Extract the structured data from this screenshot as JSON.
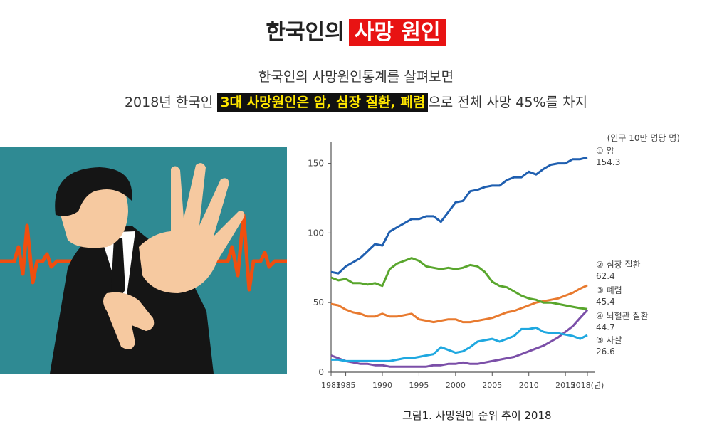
{
  "header": {
    "title_prefix": "한국인의",
    "title_highlight": "사망 원인",
    "line1": "한국인의 사망원인통계를 살펴보면",
    "line2_prefix": "2018년 한국인",
    "line2_highlight": "3대 사망원인은 암, 심장 질환, 폐렴",
    "line2_suffix": "으로 전체 사망 45%를 차지"
  },
  "caption": "그림1. 사망원인 순위 추이 2018",
  "illustration": {
    "icon": "heart-attack-person-icon",
    "bg_color": "#2f8a93",
    "pulse_color": "#f04e0f"
  },
  "chart_data": {
    "type": "line",
    "unit_label": "(인구 10만 명당 명)",
    "x_ticks": [
      "1983",
      "1985",
      "1990",
      "1995",
      "2000",
      "2005",
      "2010",
      "2015",
      "2018(년)"
    ],
    "y_ticks": [
      "0",
      "50",
      "100",
      "150"
    ],
    "xlim": [
      1983,
      2018
    ],
    "ylim": [
      0,
      160
    ],
    "grid": false,
    "series": [
      {
        "name": "① 암",
        "end_value": "154.3",
        "color": "#1f5fb0",
        "x": [
          1983,
          1984,
          1985,
          1986,
          1987,
          1988,
          1989,
          1990,
          1991,
          1992,
          1993,
          1994,
          1995,
          1996,
          1997,
          1998,
          1999,
          2000,
          2001,
          2002,
          2003,
          2004,
          2005,
          2006,
          2007,
          2008,
          2009,
          2010,
          2011,
          2012,
          2013,
          2014,
          2015,
          2016,
          2017,
          2018
        ],
        "y": [
          72,
          71,
          76,
          79,
          82,
          87,
          92,
          91,
          101,
          104,
          107,
          110,
          110,
          112,
          112,
          108,
          115,
          122,
          123,
          130,
          131,
          133,
          134,
          134,
          138,
          140,
          140,
          144,
          142,
          146,
          149,
          150,
          150,
          153,
          153,
          154.3
        ]
      },
      {
        "name": "② 심장 질환",
        "end_value": "62.4",
        "color": "#e87a2f",
        "x": [
          1983,
          1984,
          1985,
          1986,
          1987,
          1988,
          1989,
          1990,
          1991,
          1992,
          1993,
          1994,
          1995,
          1996,
          1997,
          1998,
          1999,
          2000,
          2001,
          2002,
          2003,
          2004,
          2005,
          2006,
          2007,
          2008,
          2009,
          2010,
          2011,
          2012,
          2013,
          2014,
          2015,
          2016,
          2017,
          2018
        ],
        "y": [
          49,
          48,
          45,
          43,
          42,
          40,
          40,
          42,
          40,
          40,
          41,
          42,
          38,
          37,
          36,
          37,
          38,
          38,
          36,
          36,
          37,
          38,
          39,
          41,
          43,
          44,
          46,
          48,
          50,
          51,
          52,
          53,
          55,
          57,
          60,
          62.4
        ]
      },
      {
        "name": "③ 폐렴",
        "end_value": "45.4",
        "color": "#59a62d",
        "x": [
          1983,
          1984,
          1985,
          1986,
          1987,
          1988,
          1989,
          1990,
          1991,
          1992,
          1993,
          1994,
          1995,
          1996,
          1997,
          1998,
          1999,
          2000,
          2001,
          2002,
          2003,
          2004,
          2005,
          2006,
          2007,
          2008,
          2009,
          2010,
          2011,
          2012,
          2013,
          2014,
          2015,
          2016,
          2017,
          2018
        ],
        "y": [
          68,
          66,
          67,
          64,
          64,
          63,
          64,
          62,
          74,
          78,
          80,
          82,
          80,
          76,
          75,
          74,
          75,
          74,
          75,
          77,
          76,
          72,
          65,
          62,
          61,
          58,
          55,
          53,
          52,
          50,
          50,
          49,
          48,
          47,
          46,
          45.4
        ]
      },
      {
        "name": "④ 뇌혈관 질환",
        "end_value": "44.7",
        "color": "#7b4fa8",
        "x": [
          1983,
          1984,
          1985,
          1986,
          1987,
          1988,
          1989,
          1990,
          1991,
          1992,
          1993,
          1994,
          1995,
          1996,
          1997,
          1998,
          1999,
          2000,
          2001,
          2002,
          2003,
          2004,
          2005,
          2006,
          2007,
          2008,
          2009,
          2010,
          2011,
          2012,
          2013,
          2014,
          2015,
          2016,
          2017,
          2018
        ],
        "y": [
          12,
          10,
          8,
          7,
          6,
          6,
          5,
          5,
          4,
          4,
          4,
          4,
          4,
          4,
          5,
          5,
          6,
          6,
          7,
          6,
          6,
          7,
          8,
          9,
          10,
          11,
          13,
          15,
          17,
          19,
          22,
          25,
          29,
          33,
          39,
          44.7
        ]
      },
      {
        "name": "⑤ 자살",
        "end_value": "26.6",
        "color": "#1fa8e0",
        "x": [
          1983,
          1984,
          1985,
          1986,
          1987,
          1988,
          1989,
          1990,
          1991,
          1992,
          1993,
          1994,
          1995,
          1996,
          1997,
          1998,
          1999,
          2000,
          2001,
          2002,
          2003,
          2004,
          2005,
          2006,
          2007,
          2008,
          2009,
          2010,
          2011,
          2012,
          2013,
          2014,
          2015,
          2016,
          2017,
          2018
        ],
        "y": [
          9,
          9,
          8,
          8,
          8,
          8,
          8,
          8,
          8,
          9,
          10,
          10,
          11,
          12,
          13,
          18,
          16,
          14,
          15,
          18,
          22,
          23,
          24,
          22,
          24,
          26,
          31,
          31,
          32,
          29,
          28,
          28,
          27,
          26,
          24,
          26.6
        ]
      }
    ]
  }
}
